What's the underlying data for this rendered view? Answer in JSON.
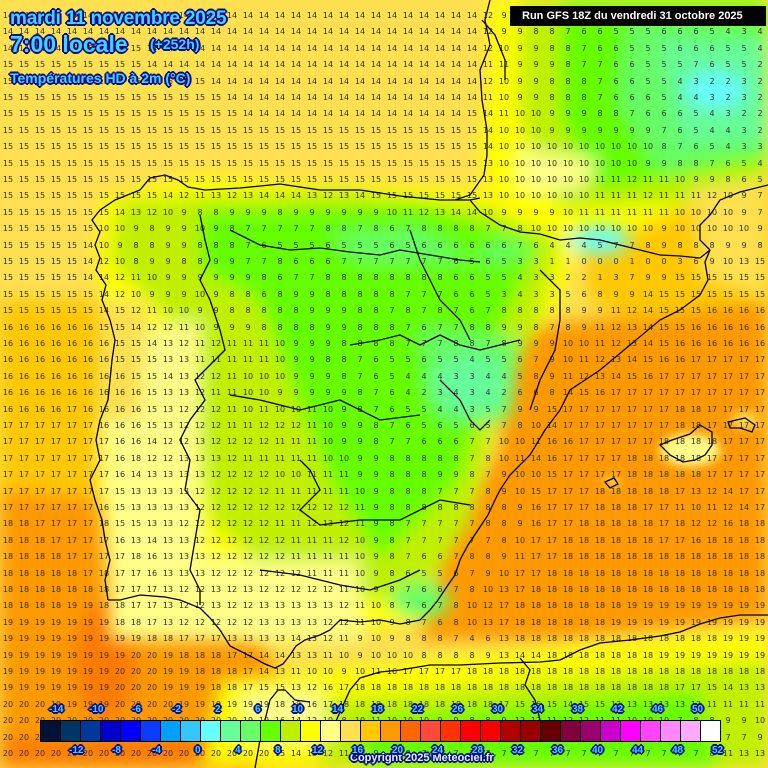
{
  "header": {
    "date": "mardi 11 novembre 2025",
    "time": "7:00 locale",
    "lead": "(+252h)",
    "variable": "Températures HD à 2m (°C)",
    "run": "Run GFS 18Z du vendredi 31 octobre 2025"
  },
  "footer": {
    "copyright": "Copyright 2025 Meteociel.fr"
  },
  "legend": {
    "colors": [
      "#001238",
      "#003566",
      "#00399c",
      "#0000cc",
      "#0000ff",
      "#0a3cff",
      "#00a0ff",
      "#32c8ff",
      "#66ffff",
      "#66ff99",
      "#66ff66",
      "#66ff00",
      "#c0f000",
      "#ffff00",
      "#ffff88",
      "#ffe050",
      "#ffc800",
      "#ff9900",
      "#ff6600",
      "#ff4a38",
      "#ff3300",
      "#ff0000",
      "#f80000",
      "#b00000",
      "#990000",
      "#660000",
      "#800040",
      "#990070",
      "#cc00cc",
      "#ff00ff",
      "#ff44ff",
      "#ff88ff",
      "#ffaaff",
      "#ffffff"
    ],
    "top_labels": [
      "-14",
      "-10",
      "-6",
      "-2",
      "2",
      "6",
      "10",
      "14",
      "18",
      "22",
      "26",
      "30",
      "34",
      "38",
      "42",
      "46",
      "50"
    ],
    "bottom_labels": [
      "-12",
      "-8",
      "-4",
      "0",
      "4",
      "8",
      "12",
      "16",
      "20",
      "24",
      "28",
      "32",
      "36",
      "40",
      "44",
      "48",
      "52"
    ]
  },
  "field_colors": {
    "sea_atlantic": "#ffc800",
    "sea_warm": "#ff9900",
    "sea_hot": "#ff7a00",
    "coast_light": "#ffff88",
    "coast_pale": "#ffe050",
    "land_yellow": "#ffff00",
    "land_lime": "#c0f000",
    "land_green": "#66ff00",
    "land_mint": "#66ff66",
    "land_aqua": "#66ff99",
    "land_cyan": "#66ffff"
  },
  "grid_values": [
    "14 14 14 14 14 14 14 14 14 14 14 14 14 14 14 14 14 14 14 14 14 14 14 14 14 14 14 14 14 14 12 9 9 8 8 7 7 6 6 5 5 5 5 7 8 7 6 5",
    "14 14 14 14 14 14 14 14 14 14 14 14 14 14 14 14 14 14 14 14 14 14 14 14 14 14 14 14 14 14 12 9 9 8 8 7 6 6 5 5 5 6 6 6 5 4 3 4",
    "14 14 14 14 15 15 15 15 15 14 14 14 14 14 14 14 14 14 14 14 14 14 14 14 14 14 14 14 14 14 12 10 9 9 8 8 7 6 6 5 5 5 6 6 6 5 5 4",
    "15 15 15 15 15 15 15 15 15 14 14 14 14 14 14 14 14 14 14 14 14 14 14 14 14 14 14 14 14 14 11 11 9 9 9 8 7 7 6 6 5 5 5 7 6 5 5 2",
    "15 15 15 15 15 15 15 15 15 15 15 15 15 14 14 14 14 14 14 14 14 14 14 14 14 14 14 14 14 14 12 10 9 9 8 8 8 7 6 6 5 5 4 3 2 2 3 2",
    "15 15 15 15 15 15 15 15 15 15 15 15 15 15 14 14 14 14 14 14 14 14 14 14 14 14 14 14 14 14 11 10 9 9 8 8 8 7 6 6 6 5 4 4 3 2 3 2",
    "15 15 15 15 15 15 15 15 15 15 15 15 15 15 15 14 14 14 14 14 14 14 14 14 14 14 14 14 14 15 14 11 10 10 9 9 9 8 8 7 6 6 6 5 4 3 2 2",
    "15 15 15 15 15 15 15 15 15 15 15 15 15 15 15 15 15 15 15 15 15 15 15 15 15 15 15 15 15 15 14 10 10 10 9 9 9 9 9 9 9 7 6 5 4 4 3 2",
    "15 15 15 15 15 15 15 15 15 15 15 15 15 15 15 15 15 15 15 15 15 15 15 15 15 15 15 15 15 15 14 10 10 10 10 10 10 10 10 10 10 8 7 6 5 4 3 3",
    "15 15 15 15 15 15 15 15 15 15 15 15 15 15 15 15 15 15 15 15 15 15 15 15 15 15 15 15 15 15 13 10 10 10 10 10 10 10 10 10 9 9 8 8 7 6 5 4",
    "15 15 15 15 15 15 15 15 15 15 15 15 15 15 15 15 15 15 15 15 15 15 15 15 15 15 15 15 15 15 13 10 10 10 10 10 10 11 11 12 11 11 10 9 9 8 6 5",
    "15 15 15 15 15 15 15 15 15 15 14 12 11 13 12 13 14 14 14 13 12 13 14 15 15 15 15 15 15 15 13 10 10 10 10 10 10 11 11 11 12 11 11 11 12 10 9 7",
    "15 15 15 15 15 15 15 14 13 12 10 9 8 8 9 9 9 8 9 9 9 9 9 9 10 11 12 13 14 14 10 9 9 9 9 10 11 11 11 11 11 11 10 10 10 10 9 7",
    "15 15 15 15 15 15 10 10 9 8 9 9 10 9 8 7 7 7 7 7 8 8 7 8 6 7 8 8 8 8 7 7 8 10 10 10 10 10 10 10 10 9 10 10 10 10 10 9",
    "15 15 15 15 15 14 10 9 8 8 9 9 8 8 8 7 6 5 5 5 6 5 5 5 6 5 6 6 6 6 6 6 7 6 4 4 4 5 7 7 8 9 8 8 8 9 9 8",
    "15 15 15 15 15 14 12 10 8 9 9 8 8 9 9 7 7 8 6 6 6 7 7 7 7 7 7 7 6 5 6 5 3 3 1 1 0 0 0 1 0 0 3 6 9 10 13 15",
    "15 15 15 15 15 14 14 12 11 10 9 9 9 9 9 9 8 6 7 7 8 8 8 8 8 8 8 8 6 6 5 5 4 3 3 2 2 1 3 7 9 9 15 15 15 15 15 15",
    "15 15 15 15 15 15 14 12 10 9 9 9 10 9 8 8 6 8 9 9 8 8 8 8 8 7 7 7 6 6 5 3 4 3 3 5 6 8 9 9 14 15 15 15 15 15 15 15",
    "15 15 15 15 15 15 14 15 12 11 10 10 9 9 8 8 8 8 8 9 9 9 8 8 7 8 7 8 7 6 7 8 8 8 8 8 9 9 11 12 14 15 15 15 16 16 16 16",
    "16 16 16 16 16 16 15 15 14 12 12 11 10 9 9 9 8 8 8 8 9 9 8 8 8 7 6 7 7 8 8 9 9 8 7 8 9 11 12 13 14 15 15 16 16 16 16 16",
    "16 16 16 16 16 16 16 15 15 14 13 12 11 12 11 11 11 10 9 9 9 8 8 8 8 7 7 7 8 8 7 8 9 9 9 10 10 11 12 13 14 15 16 16 16 16 16 16",
    "16 16 16 16 16 16 16 15 15 15 13 13 11 11 11 11 11 10 9 9 8 8 7 6 5 5 6 5 5 4 5 5 6 7 9 10 11 12 13 14 15 16 16 17 17 17 17 17",
    "16 16 16 16 16 16 16 16 15 15 14 13 12 12 11 10 10 10 9 9 9 8 7 6 5 4 4 4 3 3 4 4 5 8 9 11 12 13 14 15 16 17 17 17 17 17 17 17",
    "16 16 16 16 16 16 16 16 16 15 13 13 12 11 11 10 10 9 9 9 9 9 8 7 6 4 2 3 4 3 4 2 6 6 8 14 15 16 17 17 17 17 17 17 17 17 17 17",
    "16 16 16 16 17 16 16 16 16 15 13 12 12 12 11 10 11 10 10 11 10 9 8 7 6 5 5 4 4 3 5 7 9 9 15 17 17 17 17 17 17 17 18 18 17 17 17 17",
    "17 17 17 17 17 17 16 16 16 15 13 12 12 12 11 11 12 12 12 11 10 9 9 8 7 6 5 6 5 6 5 7 8 10 14 17 17 17 17 17 17 17 18 18 17 17 17 17",
    "17 17 17 17 17 17 17 16 16 14 12 12 13 12 12 12 12 11 11 11 10 9 9 8 7 7 6 6 6 7 7 10 10 11 16 16 17 17 17 17 17 18 18 18 18 17 17 17",
    "17 17 17 17 17 17 17 16 18 12 12 13 13 13 12 11 11 11 11 11 10 10 9 9 8 8 8 8 8 7 8 10 11 14 16 17 17 17 17 18 18 18 18 18 17 17 17 17",
    "17 17 17 17 17 17 17 16 14 13 13 13 13 12 12 12 12 10 10 11 11 11 9 9 8 8 8 9 9 8 7 9 10 10 15 17 17 17 17 18 18 18 18 18 17 17 17 17",
    "17 17 17 17 17 17 17 15 13 13 13 13 12 12 12 12 12 11 11 11 11 11 10 9 8 8 8 7 7 7 8 9 10 15 17 17 17 18 18 18 18 18 17 13 12 14 17 17",
    "17 17 17 17 17 17 16 15 13 13 13 13 12 12 12 12 12 12 12 12 12 12 11 9 8 8 8 8 8 8 8 8 9 16 17 17 17 18 18 18 17 17 11 10 11 12 14 17",
    "18 18 17 17 17 17 18 15 15 13 13 12 12 12 12 12 12 11 11 12 13 12 11 9 8 7 7 7 7 7 8 8 9 16 17 17 18 18 18 18 18 17 18 12 12 16 18 18",
    "18 18 18 17 17 17 17 16 13 14 13 13 12 12 12 12 12 12 11 11 11 12 10 9 8 7 7 7 7 7 7 8 10 17 17 18 18 18 18 18 18 17 17 16 18 18 18 18",
    "18 18 18 18 17 17 17 17 18 16 13 13 13 12 12 12 12 12 11 11 11 11 10 9 8 7 6 6 7 8 8 9 11 17 17 18 18 18 18 18 18 18 18 18 18 18 18 18",
    "18 18 18 18 18 17 18 17 17 16 13 13 13 12 12 12 12 12 12 11 11 11 10 9 8 6 5 5 6 7 9 10 17 17 18 18 18 18 18 18 18 18 18 18 18 18 18 18",
    "18 18 18 18 18 18 18 17 17 17 13 12 12 13 12 13 12 12 12 12 12 11 10 9 8 7 6 6 7 8 10 13 17 18 18 18 18 18 18 18 18 18 18 18 18 18 18 18",
    "18 18 18 18 19 19 18 18 17 17 13 12 12 13 12 12 13 13 13 13 13 12 11 10 8 7 6 7 8 10 12 17 18 18 18 18 18 18 18 19 19 19 19 19 19 19 19 19",
    "19 19 19 19 19 19 19 18 18 17 13 12 12 12 12 12 13 13 13 13 12 12 11 10 9 8 7 6 8 10 13 17 18 18 18 18 18 18 19 19 19 19 19 19 19 19 19 19",
    "19 19 19 19 19 19 19 19 19 18 18 17 17 17 13 13 13 13 14 13 12 11 9 10 9 8 8 8 7 4 6 13 18 18 18 18 18 18 18 18 18 18 18 18 18 19 19 19",
    "19 19 19 19 19 19 19 19 20 20 19 18 18 18 17 17 14 14 13 13 11 10 9 10 10 10 8 8 8 8 9 13 14 14 18 18 18 18 18 18 18 19 19 19 19 19 19 19",
    "19 19 19 19 19 19 19 20 20 20 19 19 18 18 18 17 14 13 11 10 10 9 10 11 16 17 17 17 17 18 18 18 18 18 18 18 18 18 18 18 18 18 18 18 18 18 18 18",
    "19 19 19 19 19 19 19 20 20 20 19 19 19 18 18 17 15 15 13 12 16 17 18 18 18 18 18 18 18 18 18 18 18 18 18 18 18 18 18 18 18 18 17 17 15 14 13 13",
    "20 20 20 19 19 19 19 20 20 20 20 19 19 19 19 19 19 18 18 16 17 18 18 18 18 18 18 18 18 18 18 17 15 16 15 14 15 15 13 13 13 13 13 13 11 11 11 11",
    "20 20 20 20 20 20 20 20 20 20 20 20 20 20 20 19 19 16 14 12 10 8 10 11 10 10 10 9 9 8 8 9 12 12 11 12 12 11 11 10 10 10 7 8 8 9 9 10",
    "20 20 20 20 20 20 20 20 20 20 20 20 20 20 20 20 19 16 15 14 12 10 9 9 8 9 8 7 7 7 7 7 8 8 8 8 7 7 7 6 6 6 6 7 7 7 7 9",
    "20 20 20 20 20 20 20 20 20 20 20 20 20 20 20 20 20 15 14 13 12 11 10 9 8 8 7 7 7 7 7 7 7 7 7 7 7 7 7 7 7 7 7 7 8 11 13 13"
  ]
}
